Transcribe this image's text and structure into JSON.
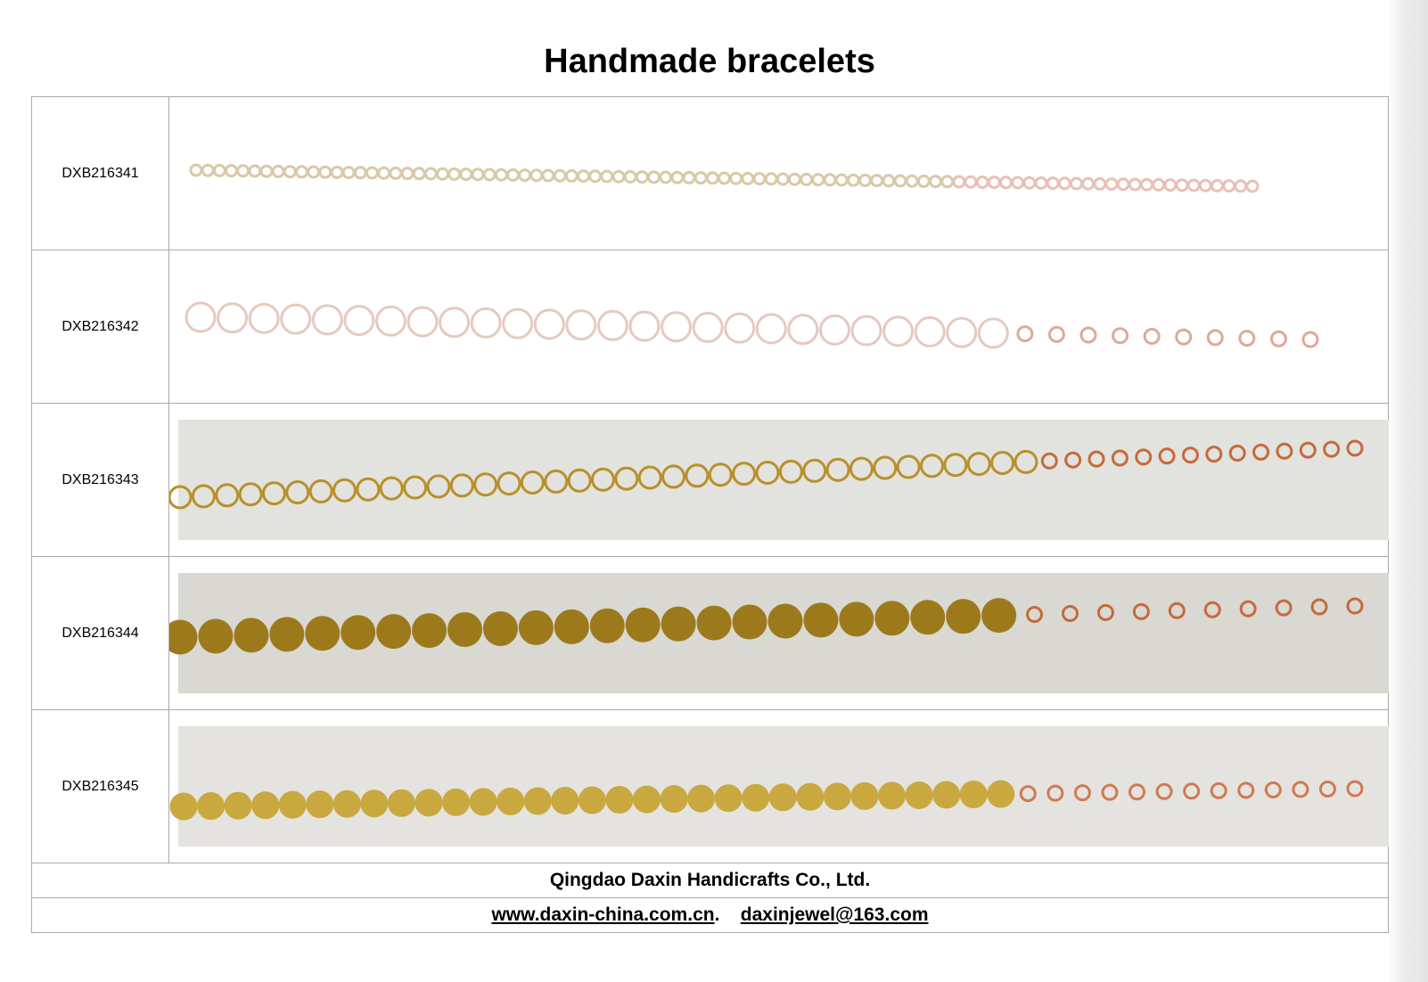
{
  "header": {
    "title": "Handmade bracelets"
  },
  "table": {
    "rows": [
      [
        "DXB216341"
      ],
      [
        "DXB216342"
      ],
      [
        "DXB216343"
      ],
      [
        "DXB216344"
      ],
      [
        "DXB216345"
      ]
    ]
  },
  "footer": {
    "company": "Qingdao Daxin Handicrafts Co., Ltd.",
    "website": "www.daxin-china.com.cn",
    "separator": ".",
    "email": "daxinjewel@163.com"
  }
}
